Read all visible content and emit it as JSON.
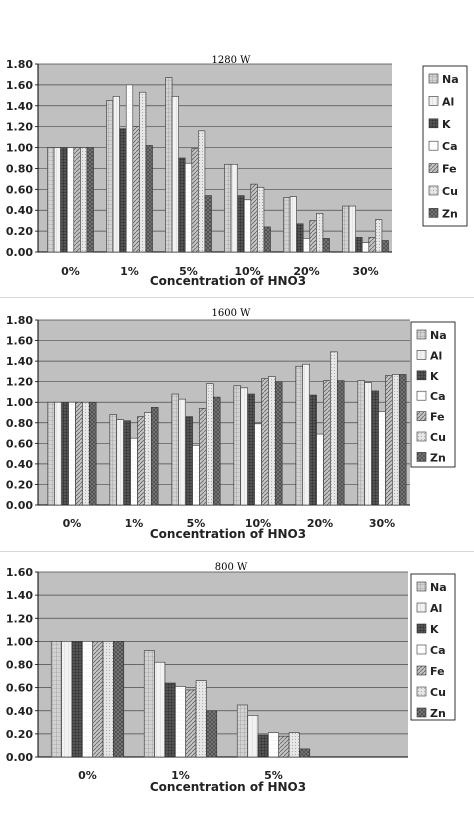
{
  "chart_data": [
    {
      "type": "bar",
      "title": "1280 W",
      "xlabel": "Concentration of HNO3",
      "ylabel": "",
      "ylim": [
        0,
        1.8
      ],
      "yticks": [
        "0.00",
        "0.20",
        "0.40",
        "0.60",
        "0.80",
        "1.00",
        "1.20",
        "1.40",
        "1.60",
        "1.80"
      ],
      "grid": true,
      "legend": "right",
      "categories": [
        "0%",
        "1%",
        "5%",
        "10%",
        "20%",
        "30%"
      ],
      "series": [
        {
          "name": "Na",
          "values": [
            1.0,
            1.45,
            1.67,
            0.84,
            0.52,
            0.44
          ]
        },
        {
          "name": "Al",
          "values": [
            1.0,
            1.49,
            1.49,
            0.84,
            0.53,
            0.44
          ]
        },
        {
          "name": "K",
          "values": [
            1.0,
            1.18,
            0.9,
            0.54,
            0.27,
            0.14
          ]
        },
        {
          "name": "Ca",
          "values": [
            1.0,
            1.6,
            0.85,
            0.5,
            0.13,
            0.09
          ]
        },
        {
          "name": "Fe",
          "values": [
            1.0,
            1.2,
            0.99,
            0.65,
            0.3,
            0.14
          ]
        },
        {
          "name": "Cu",
          "values": [
            1.0,
            1.53,
            1.16,
            0.62,
            0.37,
            0.31
          ]
        },
        {
          "name": "Zn",
          "values": [
            1.0,
            1.02,
            0.54,
            0.24,
            0.13,
            0.11
          ]
        }
      ]
    },
    {
      "type": "bar",
      "title": "1600 W",
      "xlabel": "Concentration of HNO3",
      "ylabel": "",
      "ylim": [
        0,
        1.8
      ],
      "yticks": [
        "0.00",
        "0.20",
        "0.40",
        "0.60",
        "0.80",
        "1.00",
        "1.20",
        "1.40",
        "1.60",
        "1.80"
      ],
      "grid": true,
      "legend": "right",
      "categories": [
        "0%",
        "1%",
        "5%",
        "10%",
        "20%",
        "30%"
      ],
      "series": [
        {
          "name": "Na",
          "values": [
            1.0,
            0.88,
            1.08,
            1.16,
            1.35,
            1.21
          ]
        },
        {
          "name": "Al",
          "values": [
            1.0,
            0.83,
            1.03,
            1.14,
            1.37,
            1.19
          ]
        },
        {
          "name": "K",
          "values": [
            1.0,
            0.82,
            0.86,
            1.08,
            1.07,
            1.11
          ]
        },
        {
          "name": "Ca",
          "values": [
            1.0,
            0.65,
            0.58,
            0.79,
            0.69,
            0.91
          ]
        },
        {
          "name": "Fe",
          "values": [
            1.0,
            0.86,
            0.94,
            1.23,
            1.21,
            1.26
          ]
        },
        {
          "name": "Cu",
          "values": [
            1.0,
            0.9,
            1.18,
            1.25,
            1.49,
            1.27
          ]
        },
        {
          "name": "Zn",
          "values": [
            1.0,
            0.95,
            1.05,
            1.2,
            1.21,
            1.27
          ]
        }
      ]
    },
    {
      "type": "bar",
      "title": "800 W",
      "xlabel": "Concentration of HNO3",
      "ylabel": "",
      "ylim": [
        0,
        1.6
      ],
      "yticks": [
        "0.00",
        "0.20",
        "0.40",
        "0.60",
        "0.80",
        "1.00",
        "1.20",
        "1.40",
        "1.60"
      ],
      "grid": true,
      "legend": "right",
      "categories": [
        "0%",
        "1%",
        "5%"
      ],
      "series": [
        {
          "name": "Na",
          "values": [
            1.0,
            0.92,
            0.45
          ]
        },
        {
          "name": "Al",
          "values": [
            1.0,
            0.82,
            0.36
          ]
        },
        {
          "name": "K",
          "values": [
            1.0,
            0.64,
            0.19
          ]
        },
        {
          "name": "Ca",
          "values": [
            1.0,
            0.61,
            0.21
          ]
        },
        {
          "name": "Fe",
          "values": [
            1.0,
            0.58,
            0.18
          ]
        },
        {
          "name": "Cu",
          "values": [
            1.0,
            0.66,
            0.21
          ]
        },
        {
          "name": "Zn",
          "values": [
            1.0,
            0.4,
            0.07
          ]
        }
      ]
    }
  ]
}
